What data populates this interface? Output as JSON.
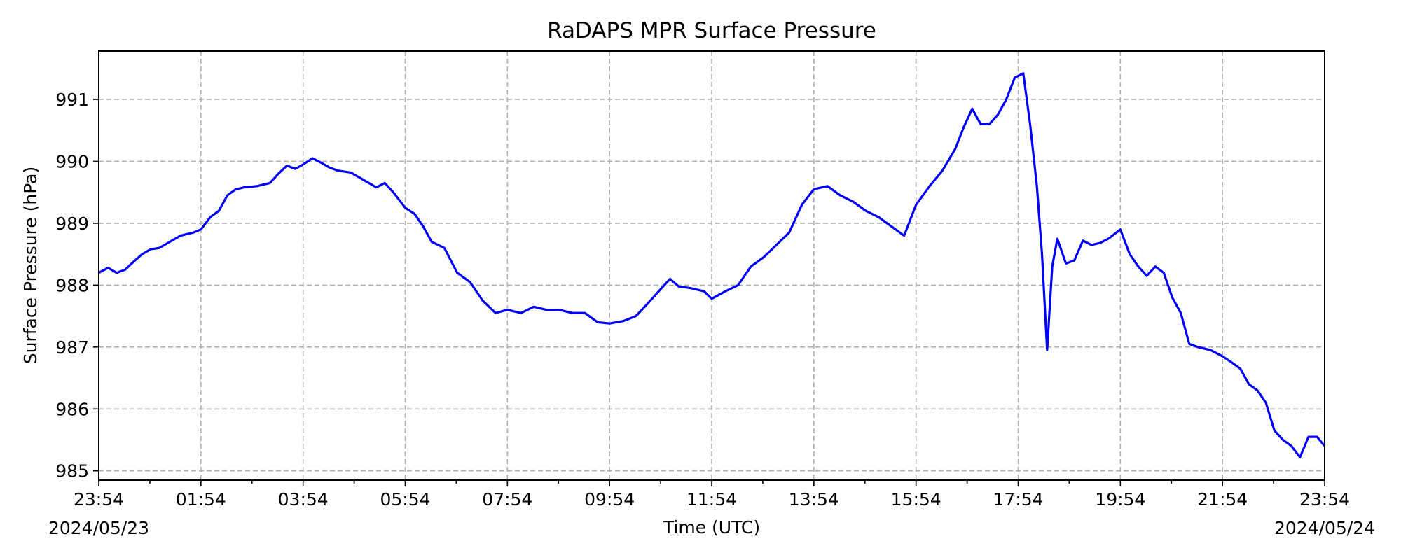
{
  "chart_data": {
    "type": "line",
    "title": "RaDAPS MPR Surface Pressure",
    "xlabel": "Time (UTC)",
    "ylabel": "Surface Pressure (hPa)",
    "x_tick_labels": [
      "23:54",
      "01:54",
      "03:54",
      "05:54",
      "07:54",
      "09:54",
      "11:54",
      "13:54",
      "15:54",
      "17:54",
      "19:54",
      "21:54",
      "23:54"
    ],
    "x_date_start": "2024/05/23",
    "x_date_end": "2024/05/24",
    "y_tick_labels": [
      "985",
      "986",
      "987",
      "988",
      "989",
      "990",
      "991"
    ],
    "ylim": [
      984.85,
      991.78
    ],
    "xlim": [
      "2024-05-23T23:54",
      "2024-05-24T23:54"
    ],
    "grid": true,
    "series": [
      {
        "color": "#0000ff",
        "points": [
          [
            "2024-05-23T23:54",
            988.2
          ],
          [
            "2024-05-24T00:05",
            988.28
          ],
          [
            "2024-05-24T00:15",
            988.2
          ],
          [
            "2024-05-24T00:25",
            988.25
          ],
          [
            "2024-05-24T00:35",
            988.38
          ],
          [
            "2024-05-24T00:45",
            988.5
          ],
          [
            "2024-05-24T00:55",
            988.58
          ],
          [
            "2024-05-24T01:05",
            988.6
          ],
          [
            "2024-05-24T01:15",
            988.68
          ],
          [
            "2024-05-24T01:30",
            988.8
          ],
          [
            "2024-05-24T01:45",
            988.85
          ],
          [
            "2024-05-24T01:54",
            988.9
          ],
          [
            "2024-05-24T02:05",
            989.1
          ],
          [
            "2024-05-24T02:15",
            989.2
          ],
          [
            "2024-05-24T02:25",
            989.45
          ],
          [
            "2024-05-24T02:35",
            989.55
          ],
          [
            "2024-05-24T02:45",
            989.58
          ],
          [
            "2024-05-24T03:00",
            989.6
          ],
          [
            "2024-05-24T03:15",
            989.65
          ],
          [
            "2024-05-24T03:25",
            989.8
          ],
          [
            "2024-05-24T03:35",
            989.93
          ],
          [
            "2024-05-24T03:45",
            989.88
          ],
          [
            "2024-05-24T03:54",
            989.95
          ],
          [
            "2024-05-24T04:05",
            990.05
          ],
          [
            "2024-05-24T04:15",
            989.98
          ],
          [
            "2024-05-24T04:25",
            989.9
          ],
          [
            "2024-05-24T04:35",
            989.85
          ],
          [
            "2024-05-24T04:50",
            989.82
          ],
          [
            "2024-05-24T05:05",
            989.7
          ],
          [
            "2024-05-24T05:20",
            989.58
          ],
          [
            "2024-05-24T05:30",
            989.65
          ],
          [
            "2024-05-24T05:40",
            989.5
          ],
          [
            "2024-05-24T05:54",
            989.25
          ],
          [
            "2024-05-24T06:05",
            989.15
          ],
          [
            "2024-05-24T06:15",
            988.95
          ],
          [
            "2024-05-24T06:25",
            988.7
          ],
          [
            "2024-05-24T06:40",
            988.6
          ],
          [
            "2024-05-24T06:55",
            988.2
          ],
          [
            "2024-05-24T07:10",
            988.05
          ],
          [
            "2024-05-24T07:25",
            987.75
          ],
          [
            "2024-05-24T07:40",
            987.55
          ],
          [
            "2024-05-24T07:54",
            987.6
          ],
          [
            "2024-05-24T08:10",
            987.55
          ],
          [
            "2024-05-24T08:25",
            987.65
          ],
          [
            "2024-05-24T08:40",
            987.6
          ],
          [
            "2024-05-24T08:55",
            987.6
          ],
          [
            "2024-05-24T09:10",
            987.55
          ],
          [
            "2024-05-24T09:25",
            987.55
          ],
          [
            "2024-05-24T09:40",
            987.4
          ],
          [
            "2024-05-24T09:54",
            987.38
          ],
          [
            "2024-05-24T10:10",
            987.42
          ],
          [
            "2024-05-24T10:25",
            987.5
          ],
          [
            "2024-05-24T10:40",
            987.72
          ],
          [
            "2024-05-24T10:55",
            987.95
          ],
          [
            "2024-05-24T11:05",
            988.1
          ],
          [
            "2024-05-24T11:15",
            987.98
          ],
          [
            "2024-05-24T11:30",
            987.95
          ],
          [
            "2024-05-24T11:45",
            987.9
          ],
          [
            "2024-05-24T11:54",
            987.78
          ],
          [
            "2024-05-24T12:10",
            987.9
          ],
          [
            "2024-05-24T12:25",
            988.0
          ],
          [
            "2024-05-24T12:40",
            988.3
          ],
          [
            "2024-05-24T12:55",
            988.45
          ],
          [
            "2024-05-24T13:10",
            988.65
          ],
          [
            "2024-05-24T13:25",
            988.85
          ],
          [
            "2024-05-24T13:40",
            989.3
          ],
          [
            "2024-05-24T13:54",
            989.55
          ],
          [
            "2024-05-24T14:10",
            989.6
          ],
          [
            "2024-05-24T14:25",
            989.45
          ],
          [
            "2024-05-24T14:40",
            989.35
          ],
          [
            "2024-05-24T14:55",
            989.2
          ],
          [
            "2024-05-24T15:10",
            989.1
          ],
          [
            "2024-05-24T15:25",
            988.95
          ],
          [
            "2024-05-24T15:40",
            988.8
          ],
          [
            "2024-05-24T15:54",
            989.3
          ],
          [
            "2024-05-24T16:10",
            989.6
          ],
          [
            "2024-05-24T16:25",
            989.85
          ],
          [
            "2024-05-24T16:40",
            990.2
          ],
          [
            "2024-05-24T16:50",
            990.55
          ],
          [
            "2024-05-24T17:00",
            990.85
          ],
          [
            "2024-05-24T17:10",
            990.6
          ],
          [
            "2024-05-24T17:20",
            990.6
          ],
          [
            "2024-05-24T17:30",
            990.75
          ],
          [
            "2024-05-24T17:40",
            991.0
          ],
          [
            "2024-05-24T17:50",
            991.35
          ],
          [
            "2024-05-24T18:00",
            991.42
          ],
          [
            "2024-05-24T18:08",
            990.6
          ],
          [
            "2024-05-24T18:16",
            989.6
          ],
          [
            "2024-05-24T18:22",
            988.5
          ],
          [
            "2024-05-24T18:28",
            986.95
          ],
          [
            "2024-05-24T18:34",
            988.3
          ],
          [
            "2024-05-24T18:40",
            988.75
          ],
          [
            "2024-05-24T18:50",
            988.35
          ],
          [
            "2024-05-24T19:00",
            988.4
          ],
          [
            "2024-05-24T19:10",
            988.72
          ],
          [
            "2024-05-24T19:20",
            988.65
          ],
          [
            "2024-05-24T19:30",
            988.68
          ],
          [
            "2024-05-24T19:40",
            988.75
          ],
          [
            "2024-05-24T19:54",
            988.9
          ],
          [
            "2024-05-24T20:05",
            988.5
          ],
          [
            "2024-05-24T20:15",
            988.3
          ],
          [
            "2024-05-24T20:25",
            988.15
          ],
          [
            "2024-05-24T20:35",
            988.3
          ],
          [
            "2024-05-24T20:45",
            988.2
          ],
          [
            "2024-05-24T20:55",
            987.8
          ],
          [
            "2024-05-24T21:05",
            987.55
          ],
          [
            "2024-05-24T21:15",
            987.05
          ],
          [
            "2024-05-24T21:25",
            987.0
          ],
          [
            "2024-05-24T21:40",
            986.95
          ],
          [
            "2024-05-24T21:54",
            986.85
          ],
          [
            "2024-05-24T22:05",
            986.75
          ],
          [
            "2024-05-24T22:15",
            986.65
          ],
          [
            "2024-05-24T22:25",
            986.4
          ],
          [
            "2024-05-24T22:35",
            986.3
          ],
          [
            "2024-05-24T22:45",
            986.1
          ],
          [
            "2024-05-24T22:55",
            985.65
          ],
          [
            "2024-05-24T23:05",
            985.5
          ],
          [
            "2024-05-24T23:15",
            985.4
          ],
          [
            "2024-05-24T23:25",
            985.22
          ],
          [
            "2024-05-24T23:35",
            985.55
          ],
          [
            "2024-05-24T23:45",
            985.55
          ],
          [
            "2024-05-24T23:54",
            985.4
          ]
        ]
      }
    ]
  }
}
